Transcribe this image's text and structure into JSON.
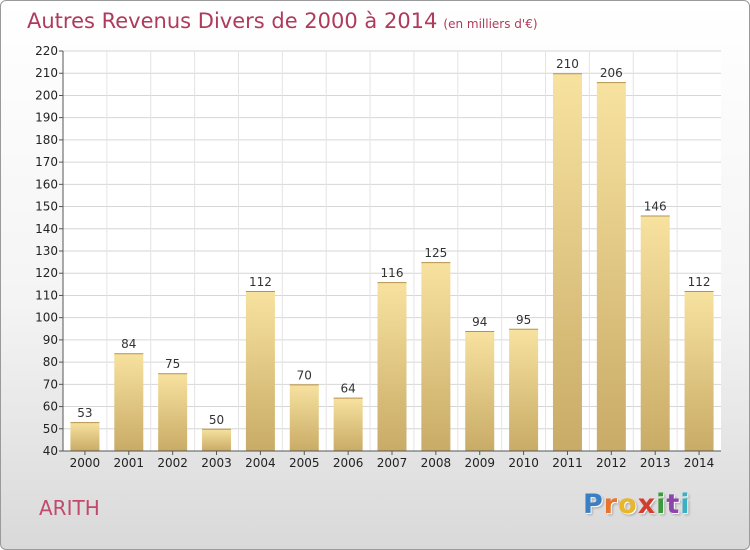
{
  "title": "Autres Revenus Divers de 2000 à 2014",
  "subtitle": "(en milliers d'€)",
  "place": "ARITH",
  "logo": {
    "text": "Proxiti",
    "colors": [
      "#3a7fc4",
      "#e8732a",
      "#e8b62a",
      "#d23d2f",
      "#3a9b3a",
      "#8e44ad",
      "#3ab0c4"
    ]
  },
  "colors": {
    "bar_top": "#f8e2a0",
    "bar_bottom": "#c8ab66",
    "title": "#b03a5b",
    "place": "#c04a6b"
  },
  "chart_data": {
    "type": "bar",
    "categories": [
      "2000",
      "2001",
      "2002",
      "2003",
      "2004",
      "2005",
      "2006",
      "2007",
      "2008",
      "2009",
      "2010",
      "2011",
      "2012",
      "2013",
      "2014"
    ],
    "values": [
      53,
      84,
      75,
      50,
      112,
      70,
      64,
      116,
      125,
      94,
      95,
      210,
      206,
      146,
      112
    ],
    "ylim": [
      40,
      220
    ],
    "yticks": [
      40,
      50,
      60,
      70,
      80,
      90,
      100,
      110,
      120,
      130,
      140,
      150,
      160,
      170,
      180,
      190,
      200,
      210,
      220
    ],
    "grid": true,
    "xlabel": "",
    "ylabel": ""
  }
}
